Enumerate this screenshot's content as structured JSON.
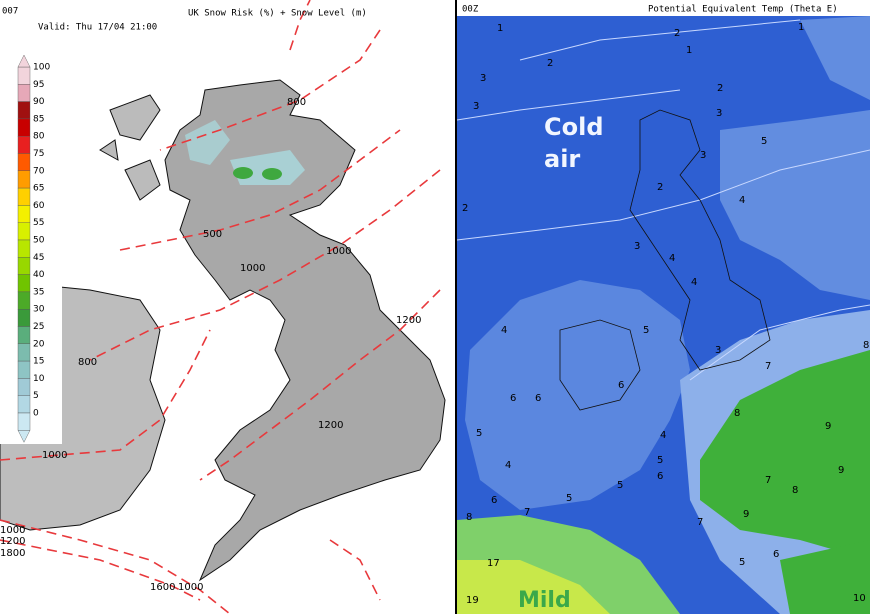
{
  "left_panel": {
    "run": "007",
    "valid": "Valid: Thu 17/04 21:00",
    "title": "UK Snow Risk (%) + Snow Level (m)",
    "legend": [
      {
        "value": 100,
        "color": "#f2d4dc"
      },
      {
        "value": 95,
        "color": "#e6a8b8"
      },
      {
        "value": 90,
        "color": "#a01010"
      },
      {
        "value": 85,
        "color": "#c80000"
      },
      {
        "value": 80,
        "color": "#e82020"
      },
      {
        "value": 75,
        "color": "#ff5a00"
      },
      {
        "value": 70,
        "color": "#ff9c00"
      },
      {
        "value": 65,
        "color": "#ffd000"
      },
      {
        "value": 60,
        "color": "#f4f000"
      },
      {
        "value": 55,
        "color": "#d8f000"
      },
      {
        "value": 50,
        "color": "#b8e600"
      },
      {
        "value": 45,
        "color": "#98d800"
      },
      {
        "value": 40,
        "color": "#70c400"
      },
      {
        "value": 35,
        "color": "#4caa28"
      },
      {
        "value": 30,
        "color": "#3a9a3a"
      },
      {
        "value": 25,
        "color": "#5aae7c"
      },
      {
        "value": 20,
        "color": "#7cbcae"
      },
      {
        "value": 15,
        "color": "#8ec4c4"
      },
      {
        "value": 10,
        "color": "#a0cad6"
      },
      {
        "value": 5,
        "color": "#b2d8e4"
      },
      {
        "value": 0,
        "color": "#cce8f2"
      }
    ],
    "snow_levels": [
      "800",
      "500",
      "1000",
      "1000",
      "1200",
      "800",
      "1200",
      "1000",
      "1000",
      "1200",
      "1800",
      "1600",
      "1000"
    ]
  },
  "right_panel": {
    "run": "00Z",
    "title": "Potential Equivalent Temp (Theta E)",
    "cold_label": "Cold",
    "cold_label_2": "air",
    "mild_label": "Mild",
    "contours": [
      "1",
      "2",
      "1",
      "1",
      "2",
      "3",
      "3",
      "2",
      "3",
      "3",
      "2",
      "5",
      "4",
      "2",
      "3",
      "4",
      "4",
      "4",
      "5",
      "3",
      "6",
      "7",
      "8",
      "6",
      "6",
      "8",
      "9",
      "4",
      "5",
      "4",
      "5",
      "6",
      "5",
      "5",
      "6",
      "7",
      "8",
      "9",
      "9",
      "7",
      "7",
      "8",
      "5",
      "6",
      "19",
      "17",
      "10"
    ]
  }
}
